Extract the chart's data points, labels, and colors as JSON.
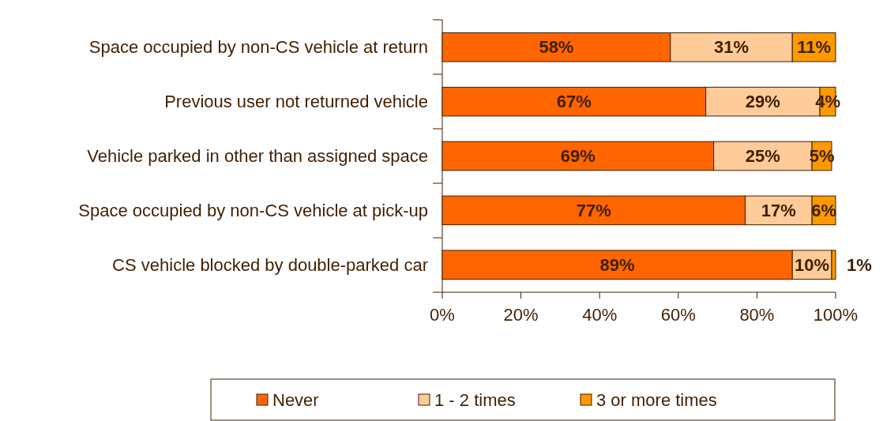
{
  "chart_data": {
    "type": "bar",
    "orientation": "horizontal",
    "stacked": true,
    "legend": "bottom",
    "grid": false,
    "categories": [
      "Space occupied by non-CS vehicle at return",
      "Previous user not returned vehicle",
      "Vehicle parked in other than assigned space",
      "Space occupied by non-CS vehicle at pick-up",
      "CS vehicle blocked by double-parked car"
    ],
    "xlim": [
      0,
      100
    ],
    "xticks": [
      {
        "value": 0,
        "label": "0%"
      },
      {
        "value": 20,
        "label": "20%"
      },
      {
        "value": 40,
        "label": "40%"
      },
      {
        "value": 60,
        "label": "60%"
      },
      {
        "value": 80,
        "label": "80%"
      },
      {
        "value": 100,
        "label": "100%"
      }
    ],
    "series": [
      {
        "name": "Never",
        "color": "#ff6600",
        "values": [
          58,
          67,
          69,
          77,
          89
        ],
        "value_labels": [
          "58%",
          "67%",
          "69%",
          "77%",
          "89%"
        ]
      },
      {
        "name": "1 - 2 times",
        "color": "#ffcc99",
        "values": [
          31,
          29,
          25,
          17,
          10
        ],
        "value_labels": [
          "31%",
          "29%",
          "25%",
          "17%",
          "10%"
        ]
      },
      {
        "name": "3 or more times",
        "color": "#ff9900",
        "values": [
          11,
          4,
          5,
          6,
          1
        ],
        "value_labels": [
          "11%",
          "4%",
          "5%",
          "6%",
          "1%"
        ]
      }
    ]
  }
}
